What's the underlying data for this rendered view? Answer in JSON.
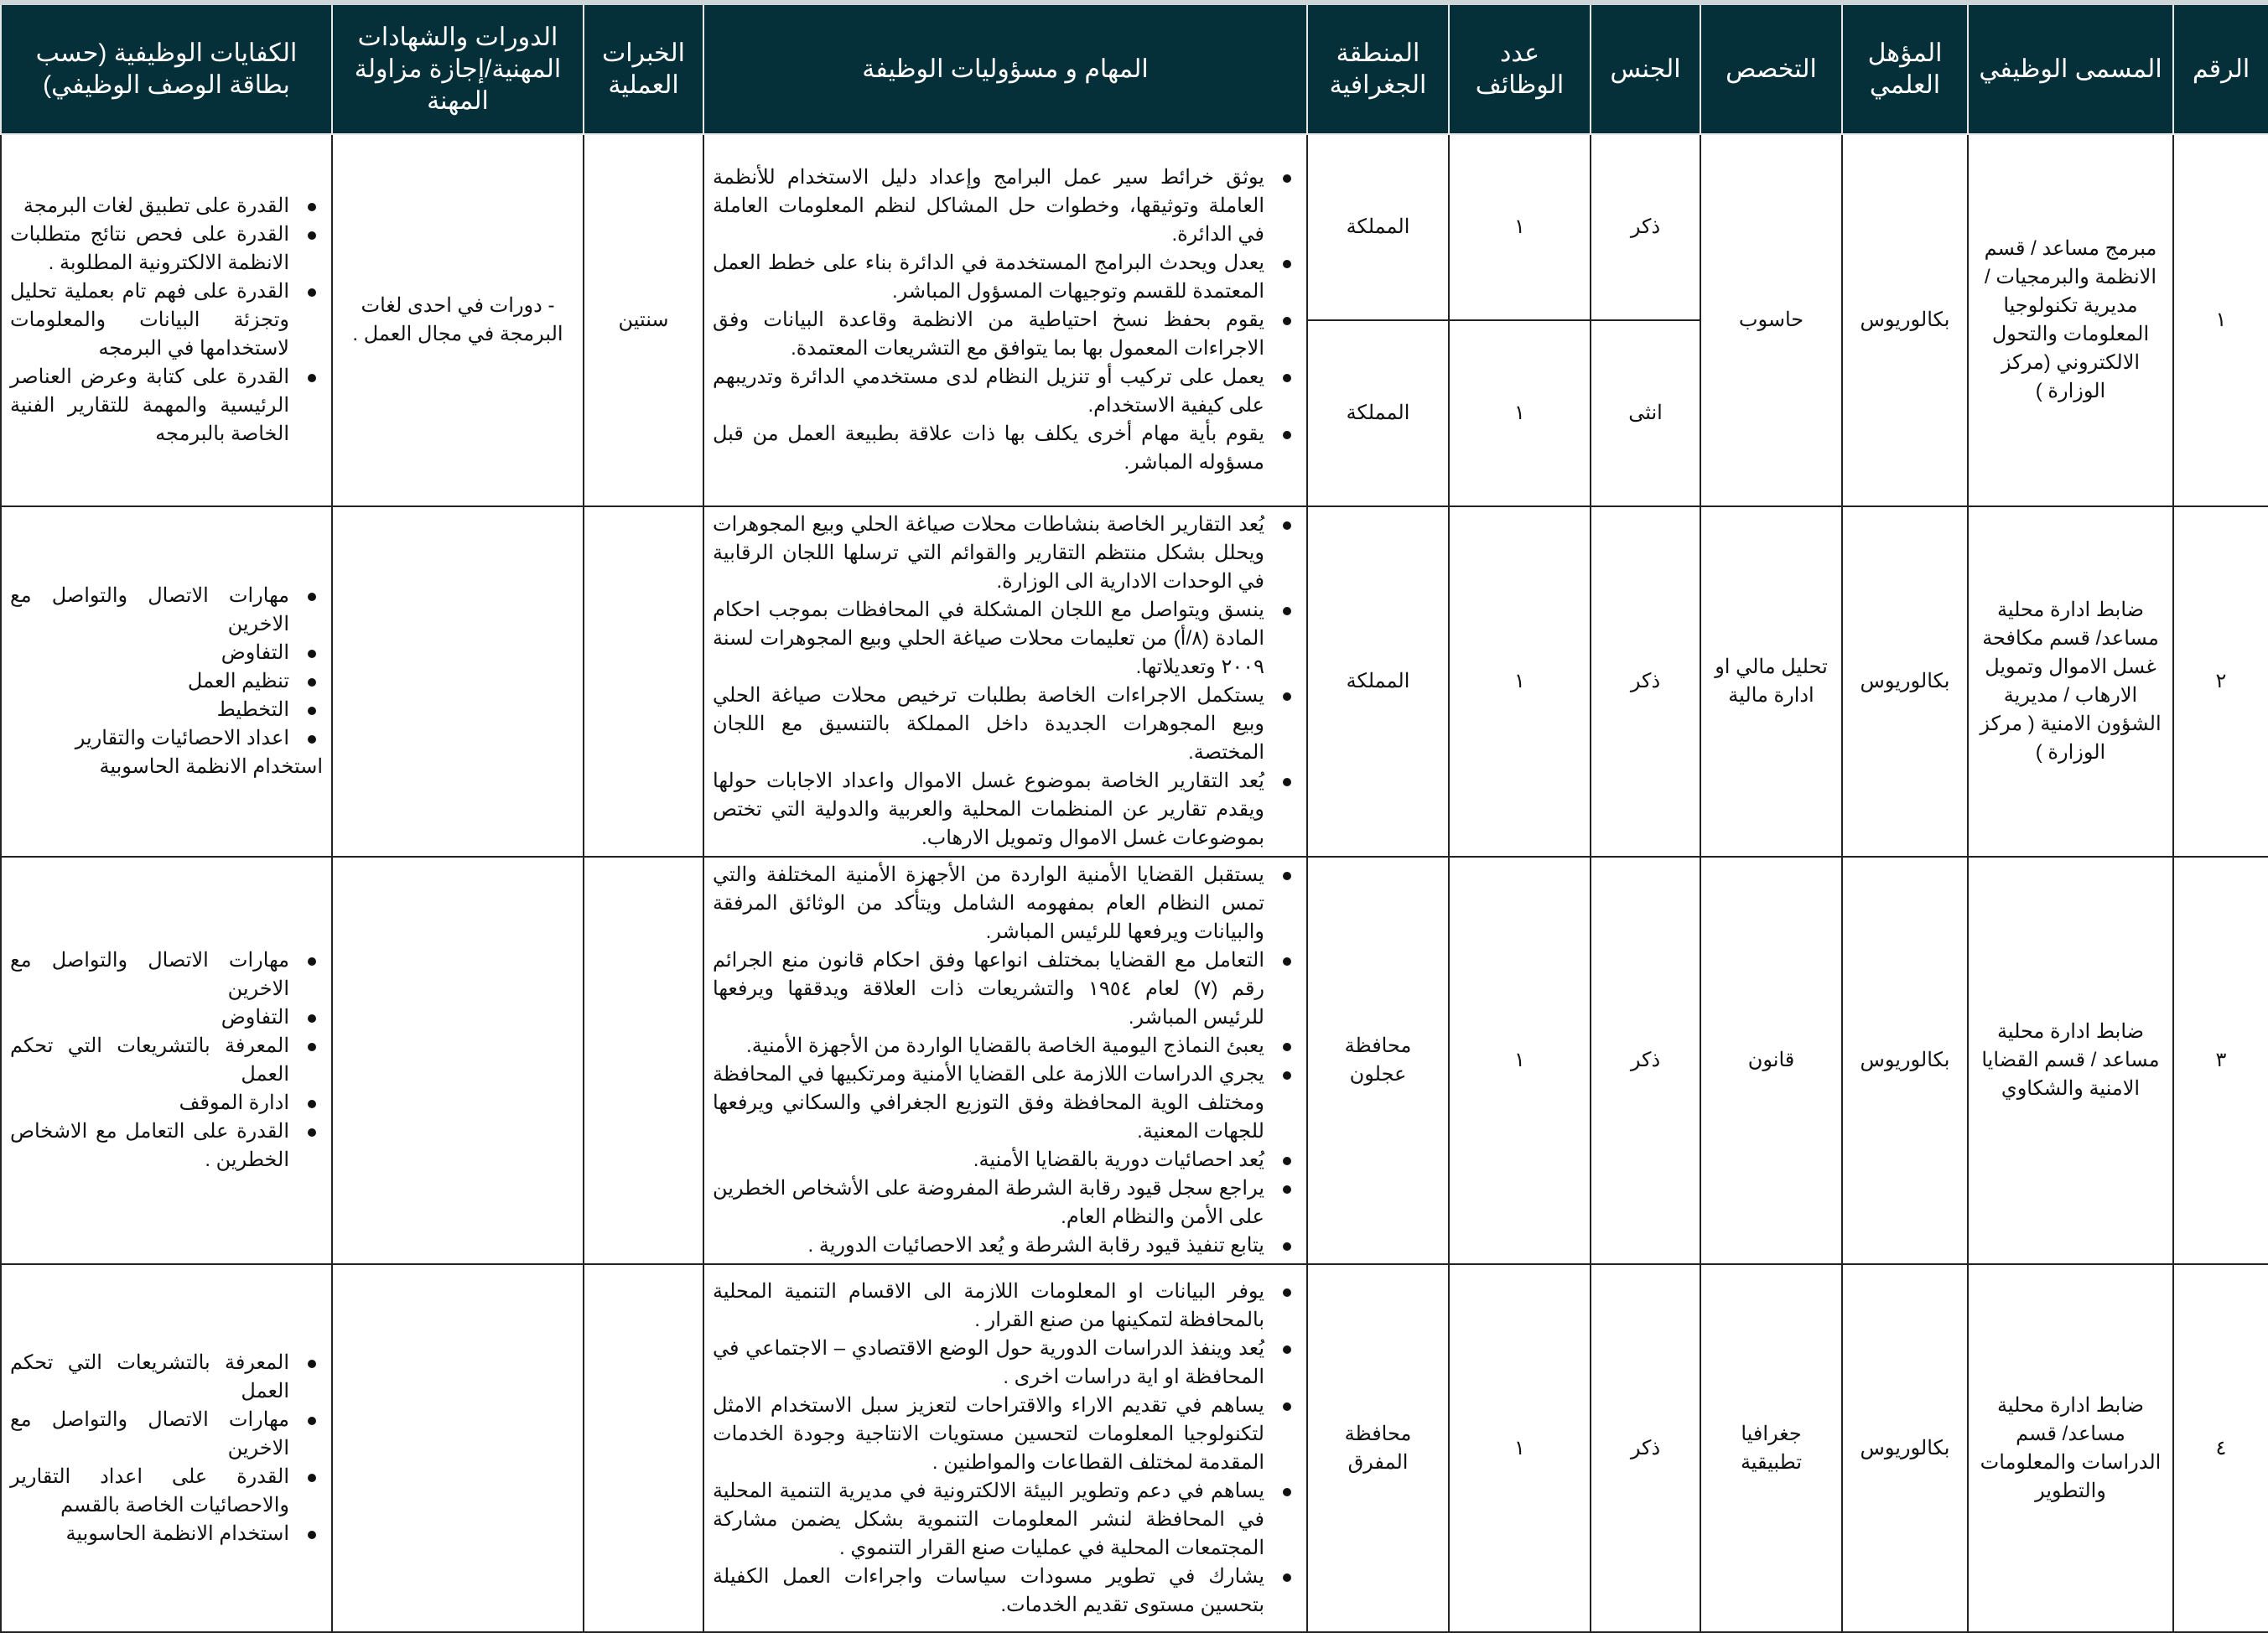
{
  "headers": [
    "الرقم",
    "المسمى الوظيفي",
    "المؤهل العلمي",
    "التخصص",
    "الجنس",
    "عدد الوظائف",
    "المنطقة الجغرافية",
    "المهام و مسؤوليات الوظيفة",
    "الخبرات العملية",
    "الدورات والشهادات المهنية/إجازة مزاولة المهنة",
    "الكفايات الوظيفية (حسب بطاقة الوصف الوظيفي)"
  ],
  "rows": [
    {
      "number": "١",
      "title": "مبرمج مساعد / قسم الانظمة والبرمجيات / مديرية تكنولوجيا المعلومات والتحول الالكتروني (مركز الوزارة )",
      "qualification": "بكالوريوس",
      "specialty": "حاسوب",
      "splits": [
        {
          "gender": "ذكر",
          "count": "١",
          "region": "المملكة"
        },
        {
          "gender": "انثى",
          "count": "١",
          "region": "المملكة"
        }
      ],
      "tasks": [
        "يوثق خرائط سير عمل البرامج وإعداد دليل الاستخدام للأنظمة العاملة وتوثيقها، وخطوات حل المشاكل لنظم المعلومات العاملة في الدائرة.",
        "يعدل ويحدث البرامج المستخدمة في الدائرة بناء على خطط العمل المعتمدة للقسم وتوجيهات المسؤول المباشر.",
        "يقوم بحفظ نسخ احتياطية من الانظمة وقاعدة البيانات وفق الاجراءات المعمول بها بما يتوافق مع التشريعات المعتمدة.",
        "يعمل على تركيب أو تنزيل النظام لدى مستخدمي الدائرة وتدريبهم على كيفية الاستخدام.",
        "يقوم بأية مهام أخرى يكلف بها ذات علاقة بطبيعة العمل من قبل مسؤوله المباشر."
      ],
      "experience": "سنتين",
      "courses": "- دورات في احدى لغات البرمجة في مجال العمل .",
      "competencies": [
        "القدرة على تطبيق لغات البرمجة",
        "القدرة على فحص نتائج متطلبات الانظمة الالكترونية المطلوبة .",
        "القدرة على فهم تام بعملية تحليل وتجزئة البيانات والمعلومات لاستخدامها في البرمجه",
        "القدرة على كتابة وعرض العناصر الرئيسية والمهمة للتقارير الفنية الخاصة بالبرمجه"
      ],
      "competencies_tail": ""
    },
    {
      "number": "٢",
      "title": "ضابط ادارة محلية مساعد/ قسم مكافحة غسل الاموال وتمويل الارهاب / مديرية الشؤون الامنية ( مركز الوزارة )",
      "qualification": "بكالوريوس",
      "specialty": "تحليل مالي او ادارة مالية",
      "splits": [
        {
          "gender": "ذكر",
          "count": "١",
          "region": "المملكة"
        }
      ],
      "tasks": [
        "يُعد التقارير الخاصة بنشاطات محلات صياغة الحلي وبيع المجوهرات ويحلل بشكل منتظم التقارير والقوائم التي ترسلها اللجان الرقابية في الوحدات الادارية الى الوزارة.",
        "ينسق ويتواصل مع اللجان المشكلة في المحافظات بموجب احكام المادة (٨/أ) من تعليمات محلات صياغة الحلي وبيع المجوهرات لسنة ٢٠٠٩ وتعديلاتها.",
        "يستكمل الاجراءات الخاصة بطلبات ترخيص محلات صياغة الحلي وبيع المجوهرات الجديدة داخل المملكة بالتنسيق مع اللجان المختصة.",
        "يُعد التقارير الخاصة بموضوع غسل الاموال واعداد الاجابات حولها ويقدم تقارير عن المنظمات المحلية والعربية والدولية التي تختص بموضوعات غسل الاموال وتمويل الارهاب."
      ],
      "experience": "",
      "courses": "",
      "competencies": [
        "مهارات الاتصال والتواصل مع الاخرين",
        "التفاوض",
        "تنظيم العمل",
        "التخطيط",
        "اعداد الاحصائيات والتقارير"
      ],
      "competencies_tail": "استخدام الانظمة الحاسوبية"
    },
    {
      "number": "٣",
      "title": "ضابط ادارة محلية مساعد / قسم القضايا الامنية والشكاوي",
      "qualification": "بكالوريوس",
      "specialty": "قانون",
      "splits": [
        {
          "gender": "ذكر",
          "count": "١",
          "region": "محافظة عجلون"
        }
      ],
      "tasks": [
        "يستقبل القضايا الأمنية الواردة من الأجهزة الأمنية المختلفة والتي تمس النظام العام بمفهومه الشامل ويتأكد من الوثائق المرفقة والبيانات ويرفعها للرئيس المباشر.",
        "التعامل مع القضايا بمختلف انواعها وفق احكام قانون منع الجرائم رقم (٧) لعام ١٩٥٤ والتشريعات ذات العلاقة ويدققها ويرفعها للرئيس المباشر.",
        "يعبئ النماذج اليومية الخاصة بالقضايا الواردة من الأجهزة الأمنية.",
        "يجري الدراسات اللازمة على القضايا الأمنية ومرتكبيها في المحافظة ومختلف الوية المحافظة وفق التوزيع الجغرافي والسكاني ويرفعها للجهات المعنية.",
        "يُعد احصائيات دورية بالقضايا الأمنية.",
        "يراجع سجل قيود رقابة الشرطة المفروضة على الأشخاص الخطرين على الأمن والنظام العام.",
        "يتابع تنفيذ قيود رقابة الشرطة و يُعد الاحصائيات الدورية ."
      ],
      "experience": "",
      "courses": "",
      "competencies": [
        "مهارات الاتصال والتواصل مع الاخرين",
        "التفاوض",
        "المعرفة بالتشريعات التي تحكم العمل",
        "ادارة الموقف",
        "القدرة على التعامل مع الاشخاص الخطرين ."
      ],
      "competencies_tail": ""
    },
    {
      "number": "٤",
      "title": "ضابط ادارة محلية مساعد/ قسم الدراسات والمعلومات والتطوير",
      "qualification": "بكالوريوس",
      "specialty": "جغرافيا تطبيقية",
      "splits": [
        {
          "gender": "ذكر",
          "count": "١",
          "region": "محافظة المفرق"
        }
      ],
      "tasks": [
        "يوفر البيانات او المعلومات اللازمة الى الاقسام التنمية المحلية بالمحافظة لتمكينها من صنع القرار .",
        "يُعد وينفذ الدراسات الدورية حول الوضع الاقتصادي – الاجتماعي في المحافظة او اية دراسات اخرى .",
        "يساهم في تقديم الاراء والاقتراحات لتعزيز سبل الاستخدام الامثل لتكنولوجيا المعلومات لتحسين مستويات الانتاجية وجودة الخدمات المقدمة لمختلف القطاعات والمواطنين .",
        "يساهم في دعم وتطوير البيئة الالكترونية في مديرية التنمية المحلية في المحافظة لنشر المعلومات التنموية بشكل يضمن مشاركة المجتمعات المحلية في عمليات صنع القرار التنموي .",
        "يشارك في تطوير مسودات سياسات واجراءات العمل الكفيلة بتحسين مستوى تقديم الخدمات."
      ],
      "experience": "",
      "courses": "",
      "competencies": [
        "المعرفة بالتشريعات التي تحكم العمل",
        "مهارات الاتصال والتواصل مع الاخرين",
        "القدرة على اعداد التقارير والاحصائيات الخاصة بالقسم",
        "استخدام الانظمة الحاسوبية"
      ],
      "competencies_tail": ""
    }
  ],
  "colors": {
    "header_bg": "#05303a",
    "header_text": "#ffffff",
    "border": "#222222"
  }
}
